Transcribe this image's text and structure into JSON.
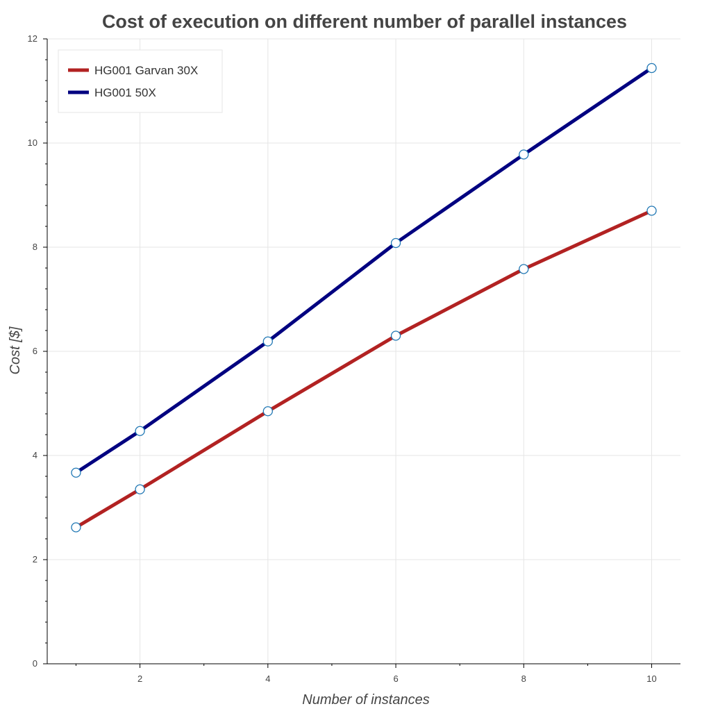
{
  "chart_data": {
    "type": "line",
    "title": "Cost of execution on different number of parallel instances",
    "xlabel": "Number of instances",
    "ylabel": "Cost [$]",
    "xlim": [
      0.55,
      10.45
    ],
    "ylim": [
      0,
      12
    ],
    "x_ticks": [
      2,
      4,
      6,
      8,
      10
    ],
    "x_minor_ticks": [
      1,
      3,
      5,
      7,
      9
    ],
    "y_ticks": [
      0,
      2,
      4,
      6,
      8,
      10,
      12
    ],
    "y_minor_ticks": [
      0.4,
      0.8,
      1.2,
      1.6,
      2.4,
      2.8,
      3.2,
      3.6,
      4.4,
      4.8,
      5.2,
      5.6,
      6.4,
      6.8,
      7.2,
      7.6,
      8.4,
      8.8,
      9.2,
      9.6,
      10.4,
      10.8,
      11.2,
      11.6
    ],
    "grid": true,
    "legend_position": "top-left",
    "x": [
      1,
      2,
      4,
      6,
      8,
      10
    ],
    "series": [
      {
        "name": "HG001 Garvan 30X",
        "color": "#b22222",
        "values": [
          2.62,
          3.35,
          4.85,
          6.3,
          7.58,
          8.7
        ]
      },
      {
        "name": "HG001 50X",
        "color": "#000080",
        "values": [
          3.67,
          4.47,
          6.19,
          8.08,
          9.78,
          11.44
        ]
      }
    ],
    "marker": {
      "fill": "#ffffff",
      "stroke": "#1f77b4"
    }
  }
}
